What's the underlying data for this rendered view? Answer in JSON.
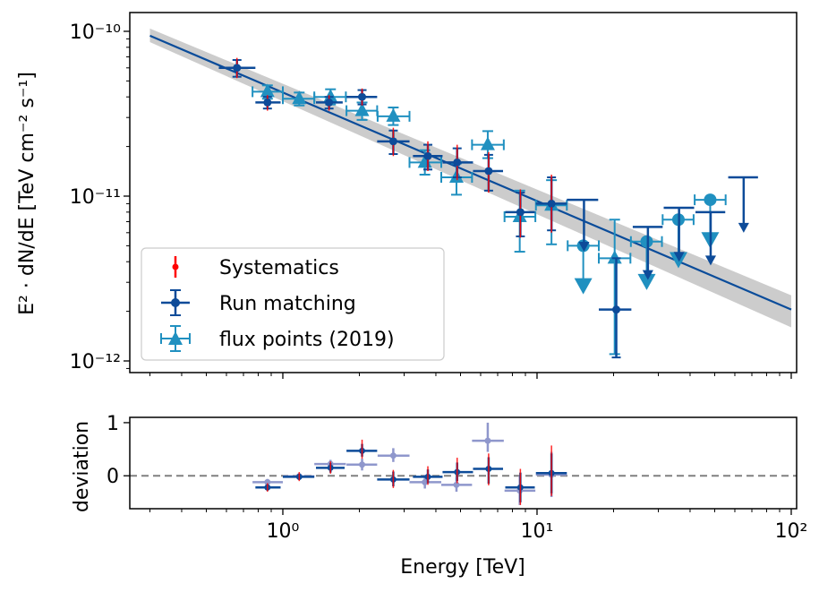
{
  "chart_data": [
    {
      "type": "scatter",
      "panel": "main",
      "xscale": "log",
      "yscale": "log",
      "xlim": [
        0.25,
        105
      ],
      "ylim": [
        8.5e-13,
        1.3e-10
      ],
      "ylabel": "E² · dN/dE [TeV cm⁻² s⁻¹]",
      "y_ticks": [
        {
          "value": 1e-10,
          "label": "10⁻¹⁰"
        },
        {
          "value": 1e-11,
          "label": "10⁻¹¹"
        },
        {
          "value": 1e-12,
          "label": "10⁻¹²"
        }
      ],
      "legend": {
        "position": "bottom-left",
        "entries": [
          "Systematics",
          "Run matching",
          "flux points (2019)"
        ]
      },
      "model": {
        "x_range": [
          0.3,
          100
        ],
        "line": [
          [
            0.3,
            9.4e-11
          ],
          [
            100,
            2.05e-12
          ]
        ],
        "band_upper": [
          [
            0.3,
            1.04e-10
          ],
          [
            100,
            2.5e-12
          ]
        ],
        "band_lower": [
          [
            0.3,
            8.6e-11
          ],
          [
            100,
            1.6e-12
          ]
        ],
        "color": "#0a4c9a",
        "band_color": "#cccccc"
      },
      "series": [
        {
          "name": "Run matching",
          "color": "#0d4b99",
          "marker": "circle",
          "points": [
            {
              "x": 0.66,
              "xlo": 0.56,
              "xhi": 0.78,
              "y": 6e-11,
              "ylo": 5.3e-11,
              "yhi": 6.7e-11
            },
            {
              "x": 0.87,
              "xlo": 0.78,
              "xhi": 0.98,
              "y": 3.7e-11,
              "ylo": 3.4e-11,
              "yhi": 4e-11
            },
            {
              "x": 1.52,
              "xlo": 1.35,
              "xhi": 1.72,
              "y": 3.7e-11,
              "ylo": 3.4e-11,
              "yhi": 4e-11
            },
            {
              "x": 2.05,
              "xlo": 1.78,
              "xhi": 2.35,
              "y": 4e-11,
              "ylo": 3.6e-11,
              "yhi": 4.4e-11
            },
            {
              "x": 2.72,
              "xlo": 2.35,
              "xhi": 3.15,
              "y": 2.15e-11,
              "ylo": 1.8e-11,
              "yhi": 2.5e-11
            },
            {
              "x": 3.72,
              "xlo": 3.25,
              "xhi": 4.25,
              "y": 1.75e-11,
              "ylo": 1.45e-11,
              "yhi": 2.05e-11
            },
            {
              "x": 4.85,
              "xlo": 4.25,
              "xhi": 5.6,
              "y": 1.6e-11,
              "ylo": 1.3e-11,
              "yhi": 1.95e-11
            },
            {
              "x": 6.45,
              "xlo": 5.6,
              "xhi": 7.35,
              "y": 1.42e-11,
              "ylo": 1.08e-11,
              "yhi": 1.78e-11
            },
            {
              "x": 8.6,
              "xlo": 7.5,
              "xhi": 9.8,
              "y": 8e-12,
              "ylo": 5.7e-12,
              "yhi": 1.05e-11
            },
            {
              "x": 11.4,
              "xlo": 9.9,
              "xhi": 13.1,
              "y": 9e-12,
              "ylo": 6.2e-12,
              "yhi": 1.3e-11
            },
            {
              "x": 15.3,
              "xlo": 13.1,
              "xhi": 17.4,
              "y": 9.5e-12,
              "uplim": true,
              "uplim_to": 4.6e-12
            },
            {
              "x": 20.5,
              "xlo": 17.5,
              "xhi": 23.5,
              "y": 2.05e-12,
              "ylo": 1.05e-12,
              "yhi": 4.2e-12
            },
            {
              "x": 27.3,
              "xlo": 23.8,
              "xhi": 31.2,
              "y": 6.5e-12,
              "uplim": true,
              "uplim_to": 3.1e-12
            },
            {
              "x": 36.2,
              "xlo": 31.5,
              "xhi": 41.5,
              "y": 8.5e-12,
              "uplim": true,
              "uplim_to": 4e-12
            },
            {
              "x": 48.2,
              "xlo": 42.0,
              "xhi": 55.0,
              "y": 8e-12,
              "uplim": true,
              "uplim_to": 3.8e-12
            },
            {
              "x": 65.0,
              "xlo": 56.5,
              "xhi": 74.0,
              "y": 1.3e-11,
              "uplim": true,
              "uplim_to": 6e-12
            }
          ]
        },
        {
          "name": "Systematics",
          "color": "#ff0000",
          "marker": "small-circle",
          "points": [
            {
              "x": 0.66,
              "ylo": 5.2e-11,
              "yhi": 6.9e-11
            },
            {
              "x": 0.87,
              "ylo": 3.3e-11,
              "yhi": 4.1e-11
            },
            {
              "x": 1.52,
              "ylo": 3.3e-11,
              "yhi": 4.1e-11
            },
            {
              "x": 2.05,
              "ylo": 3.55e-11,
              "yhi": 4.5e-11
            },
            {
              "x": 2.72,
              "ylo": 1.75e-11,
              "yhi": 2.6e-11
            },
            {
              "x": 3.72,
              "ylo": 1.42e-11,
              "yhi": 2.15e-11
            },
            {
              "x": 4.85,
              "ylo": 1.25e-11,
              "yhi": 2.05e-11
            },
            {
              "x": 6.45,
              "ylo": 1.05e-11,
              "yhi": 1.85e-11
            },
            {
              "x": 8.6,
              "ylo": 5.6e-12,
              "yhi": 1.1e-11
            },
            {
              "x": 11.4,
              "ylo": 6e-12,
              "yhi": 1.35e-11
            }
          ]
        },
        {
          "name": "flux points (2019)",
          "color": "#2090c0",
          "marker": "triangle",
          "points": [
            {
              "x": 0.87,
              "xlo": 0.76,
              "xhi": 1.0,
              "y": 4.3e-11,
              "ylo": 3.9e-11,
              "yhi": 4.7e-11
            },
            {
              "x": 1.16,
              "xlo": 1.0,
              "xhi": 1.33,
              "y": 3.9e-11,
              "ylo": 3.55e-11,
              "yhi": 4.25e-11
            },
            {
              "x": 1.54,
              "xlo": 1.33,
              "xhi": 1.77,
              "y": 4e-11,
              "ylo": 3.6e-11,
              "yhi": 4.45e-11
            },
            {
              "x": 2.05,
              "xlo": 1.78,
              "xhi": 2.35,
              "y": 3.3e-11,
              "ylo": 2.9e-11,
              "yhi": 3.7e-11
            },
            {
              "x": 2.72,
              "xlo": 2.36,
              "xhi": 3.15,
              "y": 3.05e-11,
              "ylo": 2.7e-11,
              "yhi": 3.45e-11
            },
            {
              "x": 3.62,
              "xlo": 3.15,
              "xhi": 4.2,
              "y": 1.6e-11,
              "ylo": 1.35e-11,
              "yhi": 1.9e-11
            },
            {
              "x": 4.82,
              "xlo": 4.2,
              "xhi": 5.55,
              "y": 1.3e-11,
              "ylo": 1.02e-11,
              "yhi": 1.58e-11
            },
            {
              "x": 6.4,
              "xlo": 5.55,
              "xhi": 7.4,
              "y": 2.05e-11,
              "ylo": 1.7e-11,
              "yhi": 2.48e-11
            },
            {
              "x": 8.55,
              "xlo": 7.45,
              "xhi": 9.85,
              "y": 7.5e-12,
              "ylo": 4.6e-12,
              "yhi": 1.08e-11
            },
            {
              "x": 11.4,
              "xlo": 9.9,
              "xhi": 13.1,
              "y": 8.8e-12,
              "ylo": 5.1e-12,
              "yhi": 1.25e-11
            },
            {
              "x": 15.2,
              "xlo": 13.2,
              "xhi": 17.5,
              "y": 5e-12,
              "uplim": true,
              "marker": "circle"
            },
            {
              "x": 20.2,
              "xlo": 17.5,
              "xhi": 23.3,
              "y": 4.2e-12,
              "ylo": 1.1e-12,
              "yhi": 7.2e-12
            },
            {
              "x": 27.0,
              "xlo": 23.4,
              "xhi": 31.0,
              "y": 5.3e-12,
              "uplim": true,
              "marker": "circle"
            },
            {
              "x": 36.0,
              "xlo": 31.2,
              "xhi": 41.3,
              "y": 7.2e-12,
              "uplim": true,
              "marker": "circle"
            },
            {
              "x": 48.0,
              "xlo": 41.7,
              "xhi": 55.2,
              "y": 9.5e-12,
              "uplim": true,
              "marker": "circle"
            }
          ]
        }
      ]
    },
    {
      "type": "scatter",
      "panel": "residuals",
      "xscale": "log",
      "xlim": [
        0.25,
        105
      ],
      "ylim": [
        -0.62,
        1.1
      ],
      "xlabel": "Energy [TeV]",
      "ylabel": "deviation",
      "reference_line": {
        "y": 0,
        "style": "dashed",
        "color": "#808080"
      },
      "x_ticks": [
        {
          "value": 1,
          "label": "10⁰"
        },
        {
          "value": 10,
          "label": "10¹"
        },
        {
          "value": 100,
          "label": "10²"
        }
      ],
      "y_ticks": [
        {
          "value": 1,
          "label": "1"
        },
        {
          "value": 0,
          "label": "0"
        }
      ],
      "series": [
        {
          "name": "Run matching",
          "color": "#0d4b99",
          "points": [
            {
              "x": 0.87,
              "xlo": 0.78,
              "xhi": 0.98,
              "y": -0.22,
              "ylo": -0.28,
              "yhi": -0.16
            },
            {
              "x": 1.16,
              "xlo": 1.0,
              "xhi": 1.33,
              "y": -0.02,
              "ylo": -0.08,
              "yhi": 0.04
            },
            {
              "x": 1.54,
              "xlo": 1.35,
              "xhi": 1.75,
              "y": 0.15,
              "ylo": 0.06,
              "yhi": 0.24
            },
            {
              "x": 2.05,
              "xlo": 1.78,
              "xhi": 2.35,
              "y": 0.47,
              "ylo": 0.36,
              "yhi": 0.6
            },
            {
              "x": 2.72,
              "xlo": 2.35,
              "xhi": 3.15,
              "y": -0.07,
              "ylo": -0.2,
              "yhi": 0.08
            },
            {
              "x": 3.72,
              "xlo": 3.25,
              "xhi": 4.25,
              "y": -0.02,
              "ylo": -0.14,
              "yhi": 0.12
            },
            {
              "x": 4.85,
              "xlo": 4.25,
              "xhi": 5.6,
              "y": 0.07,
              "ylo": -0.1,
              "yhi": 0.25
            },
            {
              "x": 6.45,
              "xlo": 5.6,
              "xhi": 7.35,
              "y": 0.13,
              "ylo": -0.15,
              "yhi": 0.35
            },
            {
              "x": 8.6,
              "xlo": 7.5,
              "xhi": 9.8,
              "y": -0.22,
              "ylo": -0.5,
              "yhi": 0.06
            },
            {
              "x": 11.4,
              "xlo": 9.9,
              "xhi": 13.1,
              "y": 0.05,
              "ylo": -0.33,
              "yhi": 0.42
            }
          ]
        },
        {
          "name": "Systematics",
          "color": "#ff0000",
          "points": [
            {
              "x": 0.87,
              "ylo": -0.3,
              "yhi": -0.14
            },
            {
              "x": 1.16,
              "ylo": -0.1,
              "yhi": 0.07
            },
            {
              "x": 1.54,
              "ylo": 0.04,
              "yhi": 0.27
            },
            {
              "x": 2.05,
              "ylo": 0.32,
              "yhi": 0.68
            },
            {
              "x": 2.72,
              "ylo": -0.23,
              "yhi": 0.11
            },
            {
              "x": 3.72,
              "ylo": -0.17,
              "yhi": 0.18
            },
            {
              "x": 4.85,
              "ylo": -0.14,
              "yhi": 0.34
            },
            {
              "x": 6.45,
              "ylo": -0.18,
              "yhi": 0.42
            },
            {
              "x": 8.6,
              "ylo": -0.55,
              "yhi": 0.13
            },
            {
              "x": 11.4,
              "ylo": -0.38,
              "yhi": 0.57
            }
          ]
        },
        {
          "name": "flux points (2019)",
          "color": "#8f97cc",
          "points": [
            {
              "x": 0.87,
              "xlo": 0.76,
              "xhi": 1.0,
              "y": -0.12,
              "ylo": -0.18,
              "yhi": -0.06
            },
            {
              "x": 1.16,
              "xlo": 1.0,
              "xhi": 1.33,
              "y": -0.01,
              "ylo": -0.06,
              "yhi": 0.05
            },
            {
              "x": 1.54,
              "xlo": 1.33,
              "xhi": 1.77,
              "y": 0.22,
              "ylo": 0.14,
              "yhi": 0.3
            },
            {
              "x": 2.05,
              "xlo": 1.78,
              "xhi": 2.35,
              "y": 0.21,
              "ylo": 0.1,
              "yhi": 0.32
            },
            {
              "x": 2.72,
              "xlo": 2.36,
              "xhi": 3.15,
              "y": 0.38,
              "ylo": 0.26,
              "yhi": 0.52
            },
            {
              "x": 3.62,
              "xlo": 3.15,
              "xhi": 4.2,
              "y": -0.12,
              "ylo": -0.24,
              "yhi": 0.02
            },
            {
              "x": 4.82,
              "xlo": 4.2,
              "xhi": 5.55,
              "y": -0.17,
              "ylo": -0.3,
              "yhi": -0.02
            },
            {
              "x": 6.4,
              "xlo": 5.55,
              "xhi": 7.4,
              "y": 0.66,
              "ylo": 0.45,
              "yhi": 1.0
            },
            {
              "x": 8.55,
              "xlo": 7.45,
              "xhi": 9.85,
              "y": -0.28,
              "ylo": -0.55,
              "yhi": 0.0
            },
            {
              "x": 11.4,
              "xlo": 9.9,
              "xhi": 13.1,
              "y": 0.02,
              "ylo": -0.4,
              "yhi": 0.45
            }
          ]
        }
      ]
    }
  ]
}
